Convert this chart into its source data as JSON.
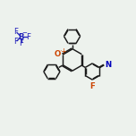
{
  "bg_color": "#edf2ed",
  "bond_color": "#1a1a1a",
  "o_color": "#cc4400",
  "n_color": "#0000bb",
  "f_color": "#cc4400",
  "b_color": "#2222bb",
  "lw": 1.05,
  "dbo": 0.048,
  "fs": 6.2,
  "fs_small": 4.5,
  "xlim": [
    0,
    10
  ],
  "ylim": [
    0,
    10
  ],
  "pcx": 5.3,
  "pcy": 5.6,
  "pr": 0.82
}
